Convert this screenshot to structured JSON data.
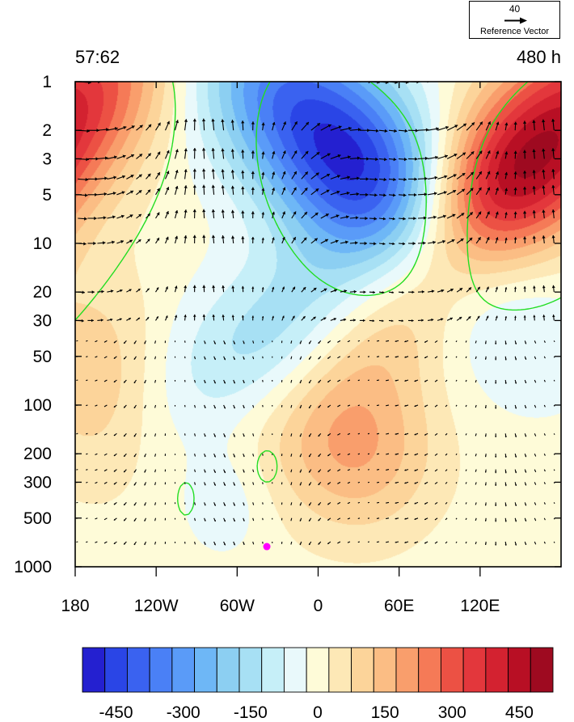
{
  "header": {
    "left": "57:62",
    "right": "480 h"
  },
  "reference_vector": {
    "magnitude": "40",
    "label": "Reference Vector"
  },
  "chart_data": {
    "type": "heatmap",
    "x_tick_labels": [
      "180",
      "120W",
      "60W",
      "0",
      "60E",
      "120E"
    ],
    "x_tick_values": [
      -180,
      -120,
      -60,
      0,
      60,
      120
    ],
    "y_tick_labels": [
      "1",
      "2",
      "3",
      "5",
      "10",
      "20",
      "30",
      "50",
      "100",
      "200",
      "300",
      "500",
      "1000"
    ],
    "y_tick_values": [
      1,
      2,
      3,
      5,
      10,
      20,
      30,
      50,
      100,
      200,
      300,
      500,
      1000
    ],
    "xlim": [
      -180,
      180
    ],
    "ylim": [
      1,
      1000
    ],
    "y_scale": "log",
    "y_inverted": true,
    "vector_levels": [
      1,
      2,
      3,
      4,
      5,
      7,
      10,
      20,
      30,
      40,
      50,
      70,
      100,
      150,
      200,
      250,
      300,
      400,
      500,
      700
    ],
    "colorbar": {
      "tick_labels": [
        "-450",
        "-300",
        "-150",
        "0",
        "150",
        "300",
        "450"
      ],
      "tick_values": [
        -450,
        -300,
        -150,
        0,
        150,
        300,
        450
      ],
      "levels": [
        -525,
        -475,
        -425,
        -375,
        -325,
        -275,
        -225,
        -175,
        -125,
        -75,
        -25,
        25,
        75,
        125,
        175,
        225,
        275,
        325,
        375,
        425,
        475,
        525
      ],
      "colors": [
        "#2420d0",
        "#2a45e6",
        "#3a62f0",
        "#4a80f6",
        "#5a9bf8",
        "#6eb7f6",
        "#8ccff2",
        "#a7e0f4",
        "#c6eff8",
        "#e9f9fb",
        "#fefbd8",
        "#fde8b6",
        "#fcd49a",
        "#fbbd84",
        "#f99e6c",
        "#f57a57",
        "#ec5144",
        "#e3373c",
        "#d32230",
        "#b80f24",
        "#9e0a20"
      ]
    },
    "marker": {
      "lon": -38,
      "pressure": 750,
      "color": "#ff00ff"
    }
  }
}
